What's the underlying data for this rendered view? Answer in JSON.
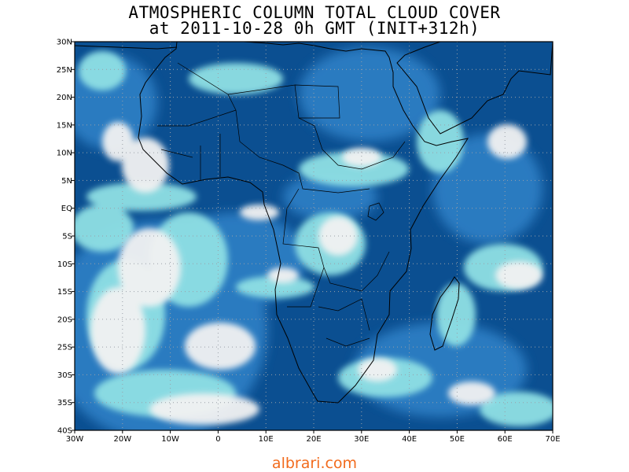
{
  "header": {
    "title_line1": "ATMOSPHERIC COLUMN TOTAL CLOUD COVER",
    "title_line2": "at 2011-10-28 0h GMT (INIT+312h)"
  },
  "map": {
    "variable": "Atmospheric column total cloud cover",
    "lon_range": [
      -30,
      70
    ],
    "lat_range": [
      -40,
      30
    ],
    "grid": true,
    "colors": {
      "clear_sky": "#0b4f91",
      "mid": "#2f80c6",
      "thin_cloud": "#8fe0e4",
      "overcast": "#f2f2f2",
      "frame": "#000000",
      "grid_lines": "#9aa0a8"
    },
    "lon_ticks": [
      "30W",
      "20W",
      "10W",
      "0",
      "10E",
      "20E",
      "30E",
      "40E",
      "50E",
      "60E",
      "70E"
    ],
    "lat_ticks": [
      "30N",
      "25N",
      "20N",
      "15N",
      "10N",
      "5N",
      "EQ",
      "5S",
      "10S",
      "15S",
      "20S",
      "25S",
      "30S",
      "35S",
      "40S"
    ]
  },
  "footer": {
    "credit": "albrari.com"
  }
}
